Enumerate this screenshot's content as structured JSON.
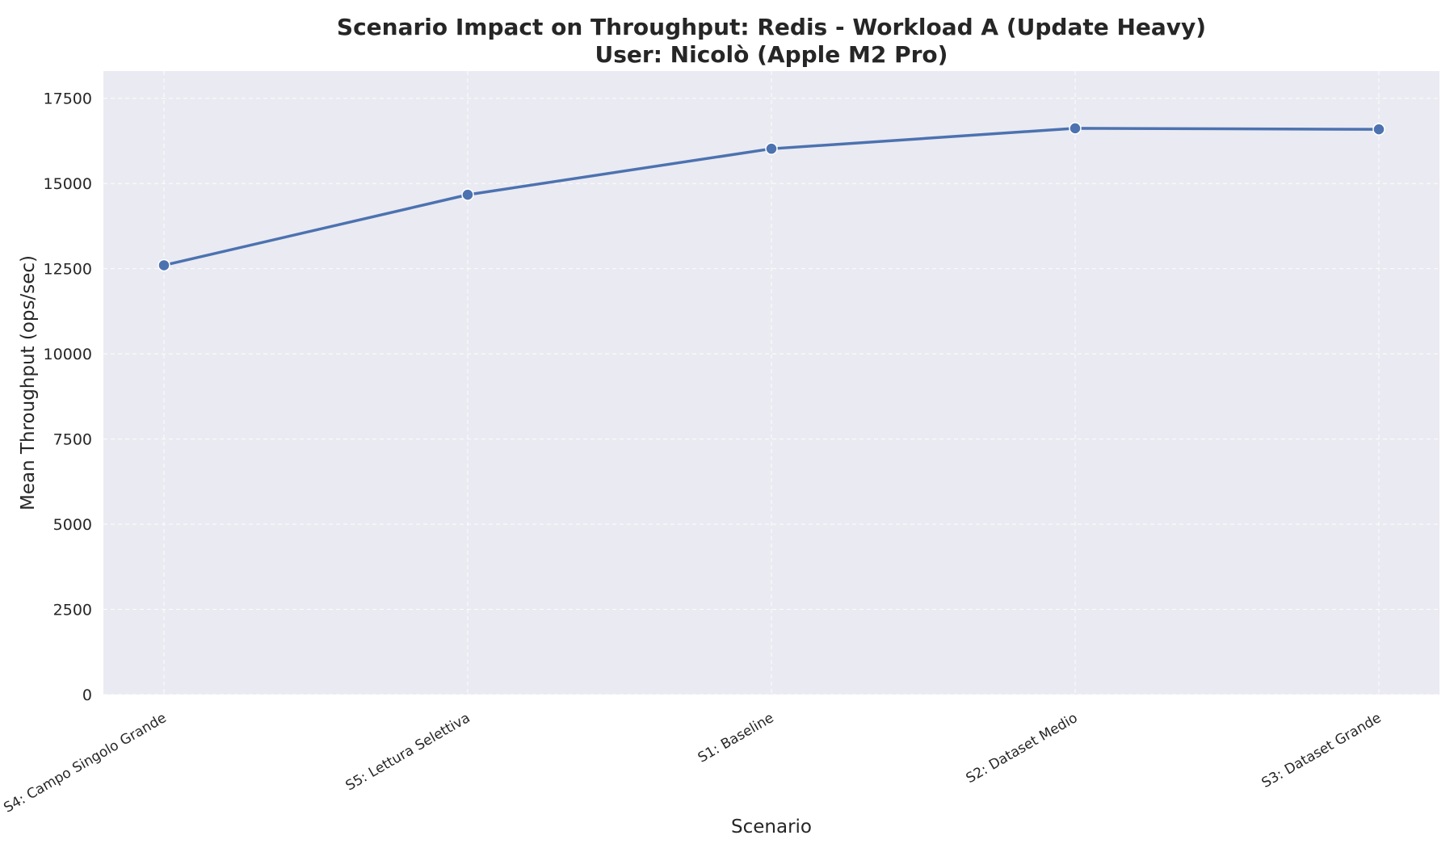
{
  "chart_data": {
    "type": "line",
    "title": "Scenario Impact on Throughput: Redis - Workload A (Update Heavy)",
    "subtitle": "User: Nicolò (Apple M2 Pro)",
    "xlabel": "Scenario",
    "ylabel": "Mean Throughput (ops/sec)",
    "categories": [
      "S4: Campo Singolo Grande",
      "S5: Lettura Selettiva",
      "S1: Baseline",
      "S2: Dataset Medio",
      "S3: Dataset Grande"
    ],
    "series": [
      {
        "values": [
          12600,
          14670,
          16020,
          16620,
          16590
        ]
      }
    ],
    "ylim": [
      0,
      18300
    ],
    "yticks": [
      0,
      2500,
      5000,
      7500,
      10000,
      12500,
      15000,
      17500
    ],
    "ytick_labels": [
      "0",
      "2500",
      "5000",
      "7500",
      "10000",
      "12500",
      "15000",
      "17500"
    ],
    "grid": true,
    "xtick_rotation_deg": -30,
    "colors": {
      "background": "#ffffff",
      "plot_background": "#eaeaf2",
      "grid": "#ffffff",
      "series": "#4c72b0",
      "text": "#262626"
    }
  }
}
